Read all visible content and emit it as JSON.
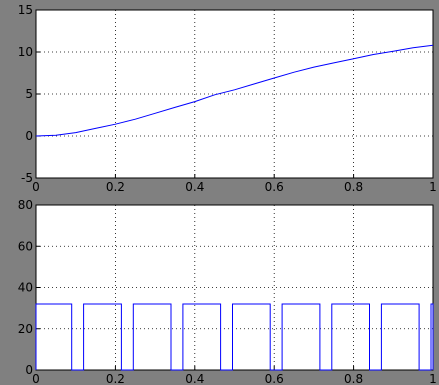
{
  "chart_data": [
    {
      "type": "line",
      "title": "",
      "xlabel": "",
      "ylabel": "",
      "xlim": [
        0,
        1
      ],
      "ylim": [
        -5,
        15
      ],
      "grid": true,
      "x_ticks": [
        0,
        0.2,
        0.4,
        0.6,
        0.8,
        1
      ],
      "x_tick_labels": [
        "0",
        "0.2",
        "0.4",
        "0.6",
        "0.8",
        "1"
      ],
      "y_ticks": [
        -5,
        0,
        5,
        10,
        15
      ],
      "y_tick_labels": [
        "-5",
        "0",
        "5",
        "10",
        "15"
      ],
      "series": [
        {
          "color": "#0000ff",
          "x": [
            0,
            0.05,
            0.1,
            0.15,
            0.2,
            0.25,
            0.3,
            0.35,
            0.4,
            0.45,
            0.5,
            0.55,
            0.6,
            0.65,
            0.7,
            0.75,
            0.8,
            0.85,
            0.9,
            0.95,
            1
          ],
          "y": [
            0,
            0.1,
            0.4,
            0.9,
            1.4,
            2.0,
            2.7,
            3.4,
            4.1,
            4.9,
            5.5,
            6.2,
            6.9,
            7.6,
            8.2,
            8.7,
            9.2,
            9.7,
            10.1,
            10.5,
            10.8
          ]
        }
      ]
    },
    {
      "type": "line",
      "title": "",
      "xlabel": "",
      "ylabel": "",
      "xlim": [
        0,
        1
      ],
      "ylim": [
        0,
        80
      ],
      "grid": true,
      "x_ticks": [
        0,
        0.2,
        0.4,
        0.6,
        0.8,
        1
      ],
      "x_tick_labels": [
        "0",
        "0.2",
        "0.4",
        "0.6",
        "0.8",
        "1"
      ],
      "y_ticks": [
        0,
        20,
        40,
        60,
        80
      ],
      "y_tick_labels": [
        "0",
        "20",
        "40",
        "60",
        "80"
      ],
      "series": [
        {
          "color": "#0000ff",
          "shape": "square-wave",
          "high": 32,
          "low": 0,
          "pulses": [
            [
              0,
              0.09
            ],
            [
              0.12,
              0.215
            ],
            [
              0.245,
              0.34
            ],
            [
              0.37,
              0.465
            ],
            [
              0.495,
              0.59
            ],
            [
              0.62,
              0.715
            ],
            [
              0.745,
              0.84
            ],
            [
              0.87,
              0.965
            ],
            [
              0.995,
              1
            ]
          ]
        }
      ]
    }
  ]
}
